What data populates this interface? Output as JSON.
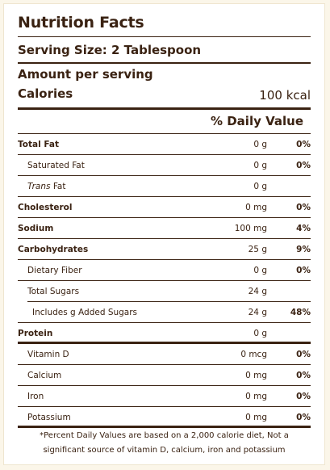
{
  "label": {
    "title": "Nutrition Facts",
    "serving_size": "Serving Size: 2 Tablespoon",
    "amount_per_serving": "Amount per serving",
    "calories_label": "Calories",
    "calories_value": "100 kcal",
    "daily_value_header": "% Daily Value",
    "rows": [
      {
        "name": "Total Fat",
        "amount": "0 g",
        "dv": "0%"
      },
      {
        "name": "Saturated Fat",
        "amount": "0 g",
        "dv": "0%"
      },
      {
        "name_italic": "Trans",
        "name": " Fat",
        "amount": "0 g",
        "dv": ""
      },
      {
        "name": "Cholesterol",
        "amount": "0 mg",
        "dv": "0%"
      },
      {
        "name": "Sodium",
        "amount": "100 mg",
        "dv": "4%"
      },
      {
        "name": "Carbohydrates",
        "amount": "25 g",
        "dv": "9%"
      },
      {
        "name": "Dietary Fiber",
        "amount": "0 g",
        "dv": "0%"
      },
      {
        "name": "Total Sugars",
        "amount": "24 g",
        "dv": ""
      },
      {
        "name": "Includes g Added Sugars",
        "amount": "24 g",
        "dv": "48%"
      },
      {
        "name": "Protein",
        "amount": "0 g",
        "dv": ""
      },
      {
        "name": "Vitamin D",
        "amount": "0 mcg",
        "dv": "0%"
      },
      {
        "name": "Calcium",
        "amount": "0 mg",
        "dv": "0%"
      },
      {
        "name": "Iron",
        "amount": "0 mg",
        "dv": "0%"
      },
      {
        "name": "Potassium",
        "amount": "0 mg",
        "dv": "0%"
      }
    ],
    "footnote_line1": "*Percent Daily Values are based on a 2,000 calorie diet, Not a",
    "footnote_line2": "significant source of vitamin D, calcium, iron and potassium"
  },
  "colors": {
    "text": "#3a2212",
    "background": "#fbf6e9",
    "panel": "#ffffff"
  }
}
